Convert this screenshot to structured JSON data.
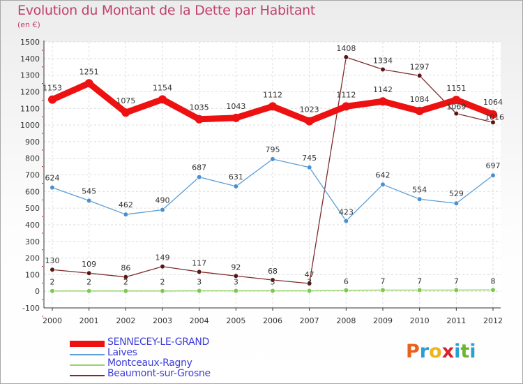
{
  "header": {
    "title": "Evolution du Montant de la Dette par Habitant",
    "subtitle": "(en €)"
  },
  "logo": {
    "text": "Proxiti",
    "colors": [
      "#e9621b",
      "#2a9fd6",
      "#f2b41c",
      "#d9232d",
      "#2a9fd6",
      "#6cb52d",
      "#2a9fd6"
    ]
  },
  "chart_data": {
    "type": "line",
    "title": "Evolution du Montant de la Dette par Habitant",
    "subtitle": "(en €)",
    "xlabel": "",
    "ylabel": "",
    "x": [
      "2000",
      "2001",
      "2002",
      "2003",
      "2004",
      "2005",
      "2006",
      "2007",
      "2008",
      "2009",
      "2010",
      "2011",
      "2012"
    ],
    "ylim": [
      -100,
      1500
    ],
    "yticks": [
      -100,
      0,
      100,
      200,
      300,
      400,
      500,
      600,
      700,
      800,
      900,
      1000,
      1100,
      1200,
      1300,
      1400,
      1500
    ],
    "grid": true,
    "legend": "bottom-left",
    "series": [
      {
        "name": "SENNECEY-LE-GRAND",
        "color": "#ee1111",
        "values": [
          1153,
          1251,
          1075,
          1154,
          1035,
          1043,
          1112,
          1023,
          1112,
          1142,
          1084,
          1151,
          1064
        ]
      },
      {
        "name": "Laives",
        "color": "#5a9ed6",
        "values": [
          624,
          545,
          462,
          490,
          687,
          631,
          795,
          745,
          423,
          642,
          554,
          529,
          697
        ]
      },
      {
        "name": "Montceaux-Ragny",
        "color": "#9ad36b",
        "values": [
          2,
          2,
          2,
          2,
          3,
          3,
          3,
          3,
          6,
          7,
          7,
          7,
          8
        ]
      },
      {
        "name": "Beaumont-sur-Grosne",
        "color": "#7d2b2b",
        "values": [
          130,
          109,
          86,
          149,
          117,
          92,
          68,
          47,
          1408,
          1334,
          1297,
          1069,
          1016
        ]
      }
    ]
  }
}
